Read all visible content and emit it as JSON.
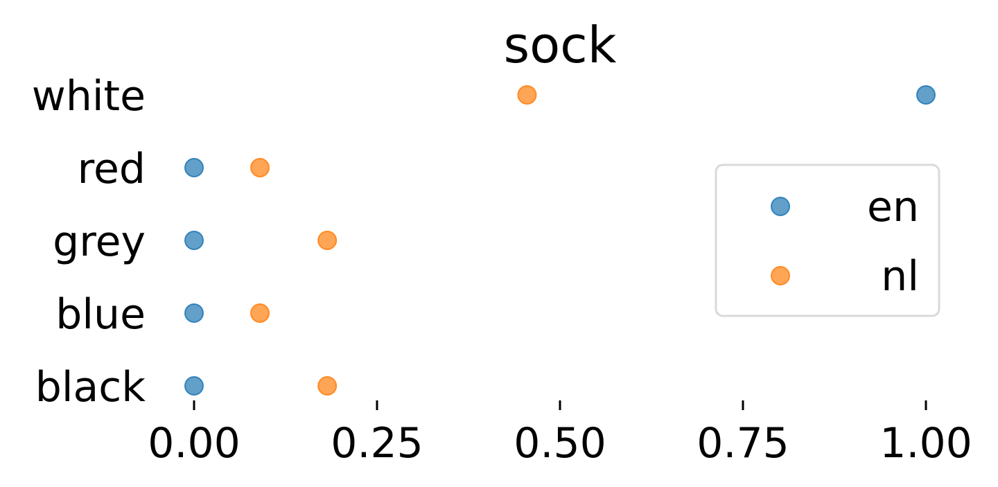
{
  "chart_data": {
    "type": "scatter",
    "title": "sock",
    "xlabel": "",
    "ylabel": "",
    "categories": [
      "white",
      "red",
      "grey",
      "blue",
      "black"
    ],
    "xlim": [
      0.0,
      1.0
    ],
    "xticks": [
      "0.00",
      "0.25",
      "0.50",
      "0.75",
      "1.00"
    ],
    "xtick_values": [
      0.0,
      0.25,
      0.5,
      0.75,
      1.0
    ],
    "grid": false,
    "legend_position": "right",
    "series": [
      {
        "name": "en",
        "color": "#1f77b4",
        "values": [
          1.0,
          0.0,
          0.0,
          0.0,
          0.0
        ]
      },
      {
        "name": "nl",
        "color": "#ff7f0e",
        "values": [
          0.455,
          0.09,
          0.182,
          0.09,
          0.182
        ]
      }
    ]
  }
}
